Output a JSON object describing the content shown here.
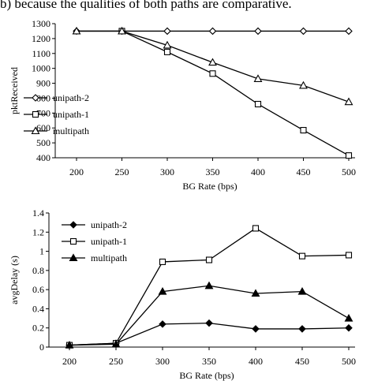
{
  "header_text": "b) because the qualities of both paths are comparative.",
  "chart_data": [
    {
      "type": "line",
      "xlabel": "BG Rate (bps)",
      "ylabel": "pktReceived",
      "x": [
        200,
        250,
        300,
        350,
        400,
        450,
        500
      ],
      "xlim": [
        200,
        500
      ],
      "ylim": [
        400,
        1300
      ],
      "yticks": [
        "400",
        "500",
        "600",
        "700",
        "800",
        "900",
        "1000",
        "1100",
        "1200",
        "1300"
      ],
      "xticks": [
        "200",
        "250",
        "300",
        "350",
        "400",
        "450",
        "500"
      ],
      "grid": false,
      "legend_position": "left-middle",
      "series": [
        {
          "name": "unipath-2",
          "marker": "diamond-open",
          "values": [
            1250,
            1250,
            1250,
            1250,
            1250,
            1250,
            1250
          ]
        },
        {
          "name": "unipath-1",
          "marker": "square-open",
          "values": [
            null,
            1250,
            1110,
            965,
            760,
            585,
            415
          ]
        },
        {
          "name": "multipath",
          "marker": "triangle-open",
          "values": [
            1250,
            1250,
            1155,
            1040,
            930,
            885,
            775
          ]
        }
      ]
    },
    {
      "type": "line",
      "xlabel": "BG Rate (bps)",
      "ylabel": "avgDelay (s)",
      "x": [
        200,
        250,
        300,
        350,
        400,
        450,
        500
      ],
      "xlim": [
        200,
        500
      ],
      "ylim": [
        0,
        1.4
      ],
      "yticks": [
        "0",
        "0.2",
        "0.4",
        "0.6",
        "0.8",
        "1",
        "1.2",
        "1.4"
      ],
      "xticks": [
        "200",
        "250",
        "300",
        "350",
        "400",
        "450",
        "500"
      ],
      "grid": false,
      "legend_position": "top-left",
      "series": [
        {
          "name": "unipath-2",
          "marker": "diamond-filled",
          "values": [
            0.02,
            0.04,
            0.24,
            0.25,
            0.19,
            0.19,
            0.2
          ]
        },
        {
          "name": "unipath-1",
          "marker": "square-open",
          "values": [
            0.02,
            0.04,
            0.89,
            0.91,
            1.24,
            0.95,
            0.96
          ]
        },
        {
          "name": "multipath",
          "marker": "triangle-filled",
          "values": [
            0.02,
            0.03,
            0.58,
            0.64,
            0.56,
            0.58,
            0.3
          ]
        }
      ]
    }
  ]
}
